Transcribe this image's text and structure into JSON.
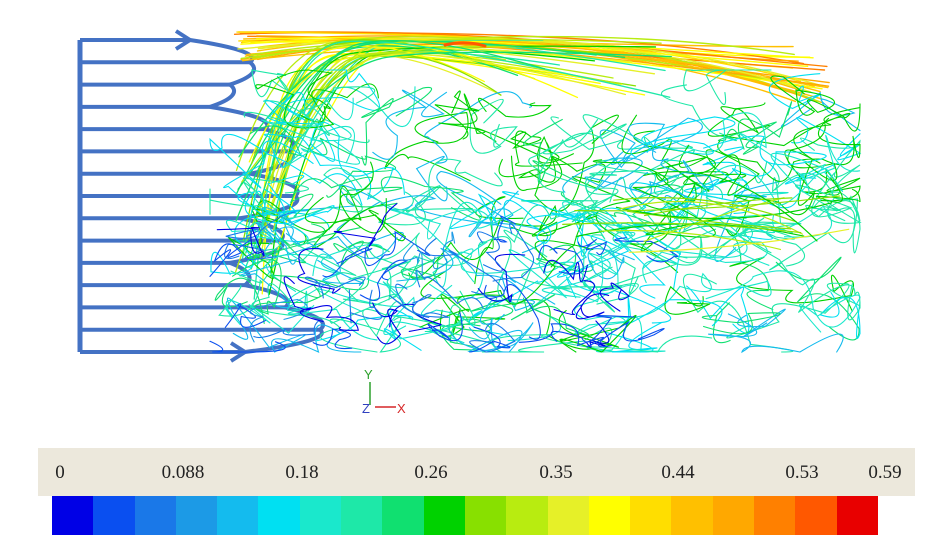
{
  "triad": {
    "y_label": "Y",
    "z_label": "Z",
    "x_label": "X"
  },
  "colorbar": {
    "tick_labels": [
      "0",
      "0.088",
      "0.18",
      "0.26",
      "0.35",
      "0.44",
      "0.53",
      "0.59"
    ],
    "min": 0,
    "max": 0.59,
    "colors": [
      "#0000e6",
      "#0a4ff0",
      "#1a78e8",
      "#1c9ae6",
      "#14bbee",
      "#00e0f2",
      "#1ae8cc",
      "#1ee8a8",
      "#10e070",
      "#00d200",
      "#88e000",
      "#b8ec10",
      "#e6f028",
      "#ffff00",
      "#ffde00",
      "#ffc000",
      "#ffa800",
      "#ff8000",
      "#ff5800",
      "#e80000"
    ]
  },
  "inflow_profile": {
    "color": "#4472c4",
    "arrow_count": 15
  }
}
